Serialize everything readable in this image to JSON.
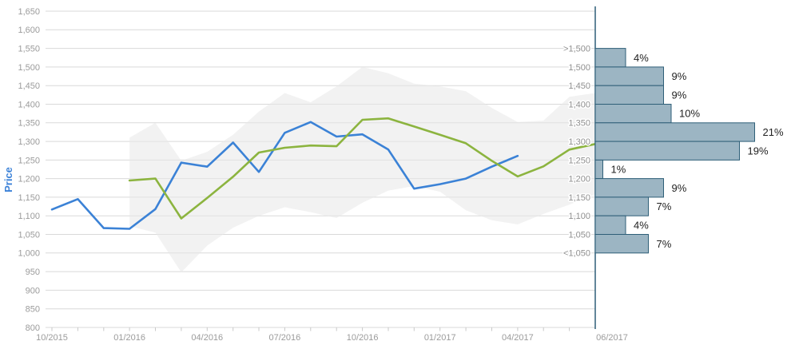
{
  "chart_data": {
    "type": "line",
    "title": "",
    "ylabel": "Price",
    "y_axis": {
      "min": 800,
      "max": 1650,
      "step": 50,
      "tick_labels": [
        "800",
        "850",
        "900",
        "950",
        "1,000",
        "1,050",
        "1,100",
        "1,150",
        "1,200",
        "1,250",
        "1,300",
        "1,350",
        "1,400",
        "1,450",
        "1,500",
        "1,550",
        "1,600",
        "1,650"
      ]
    },
    "x_axis": {
      "months_total": 22,
      "tick_labels": [
        {
          "label": "10/2015",
          "month_index": 0
        },
        {
          "label": "01/2016",
          "month_index": 3
        },
        {
          "label": "04/2016",
          "month_index": 6
        },
        {
          "label": "07/2016",
          "month_index": 9
        },
        {
          "label": "10/2016",
          "month_index": 12
        },
        {
          "label": "01/2017",
          "month_index": 15
        },
        {
          "label": "04/2017",
          "month_index": 18
        }
      ],
      "histogram_axis_label": "06/2017"
    },
    "series": [
      {
        "name": "history-line",
        "color": "#3b82d6",
        "start_month_index": 0,
        "values": [
          1117,
          1145,
          1067,
          1065,
          1118,
          1243,
          1232,
          1297,
          1218,
          1323,
          1352,
          1313,
          1319,
          1278,
          1173,
          1185,
          1200,
          1232,
          1261
        ]
      },
      {
        "name": "forecast-line",
        "color": "#8cb43f",
        "start_month_index": 3,
        "values": [
          1195,
          1200,
          1093,
          1148,
          1205,
          1270,
          1283,
          1289,
          1287,
          1358,
          1362,
          1340,
          1318,
          1295,
          1248,
          1206,
          1233,
          1278,
          1293
        ]
      }
    ],
    "band": {
      "name": "range-band",
      "color": "#e8e8e8",
      "opacity": 0.55,
      "start_month_index": 3,
      "upper": [
        1310,
        1350,
        1248,
        1272,
        1318,
        1380,
        1430,
        1405,
        1448,
        1500,
        1483,
        1455,
        1448,
        1435,
        1390,
        1352,
        1356,
        1420,
        1430
      ],
      "lower": [
        1072,
        1055,
        948,
        1020,
        1068,
        1100,
        1123,
        1110,
        1094,
        1135,
        1168,
        1180,
        1165,
        1115,
        1088,
        1077,
        1105,
        1130,
        1158
      ]
    },
    "histogram": {
      "bin_edge_labels": [
        ">1,500",
        "1,500",
        "1,450",
        "1,400",
        "1,350",
        "1,300",
        "1,250",
        "1,200",
        "1,150",
        "1,100",
        "1,050",
        "<1,050"
      ],
      "values_pct": [
        4,
        9,
        9,
        10,
        21,
        19,
        1,
        9,
        7,
        4,
        7
      ],
      "pct_labels": [
        "4%",
        "9%",
        "9%",
        "10%",
        "21%",
        "19%",
        "1%",
        "9%",
        "7%",
        "4%",
        "7%"
      ],
      "bar_fill": "#9cb5c3",
      "bar_border": "#2f5f78",
      "axis_color": "#2f5f78"
    },
    "colors": {
      "grid": "#d9d9d9",
      "tick": "#c9c9c9",
      "axis_text": "#9b9b9b",
      "ylabel_text": "#3c82d8",
      "pct_text": "#1f1f1f"
    }
  }
}
